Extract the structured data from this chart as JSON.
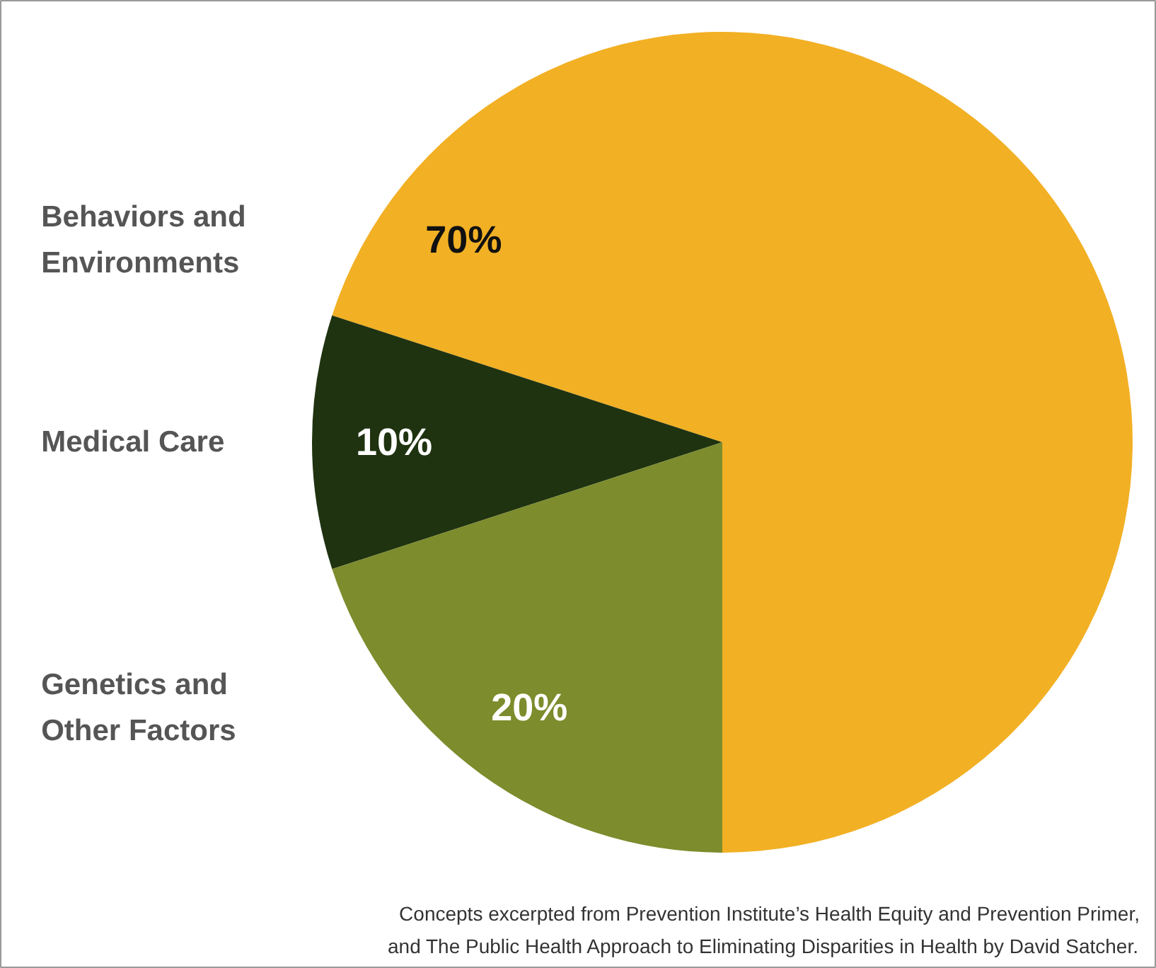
{
  "chart_data": {
    "type": "pie",
    "categories": [
      "Behaviors and\nEnvironments",
      "Medical Care",
      "Genetics and\nOther Factors"
    ],
    "values": [
      70,
      10,
      20
    ],
    "colors": [
      "#f2b024",
      "#1f3310",
      "#7d8c2c"
    ],
    "value_labels": [
      "70%",
      "10%",
      "20%"
    ],
    "annotations": [
      "Concepts excerpted from Prevention Institute’s Health Equity and Prevention Primer,",
      "and The Public Health Approach to Eliminating Disparities in Health by David Satcher."
    ]
  }
}
